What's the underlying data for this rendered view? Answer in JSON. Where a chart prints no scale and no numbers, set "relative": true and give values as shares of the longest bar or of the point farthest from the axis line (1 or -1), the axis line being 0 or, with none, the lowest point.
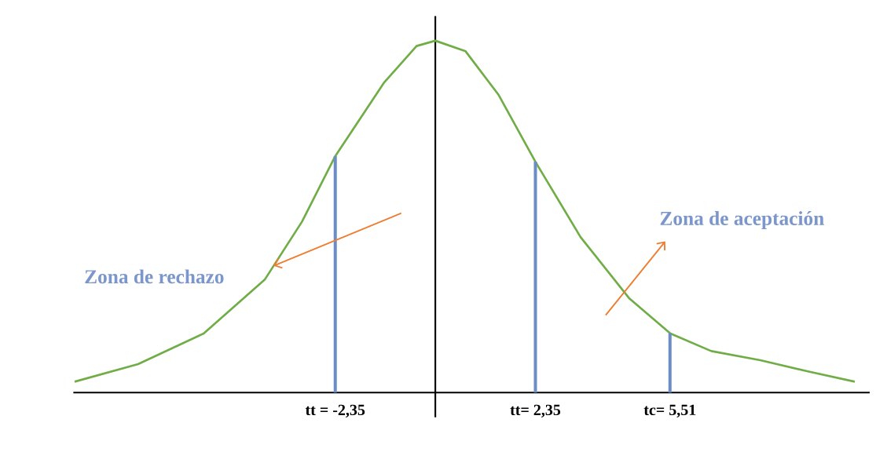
{
  "chart_data": {
    "type": "line",
    "relative": true,
    "marker": "none",
    "xlim": [
      -8.5,
      10.2
    ],
    "series": [
      {
        "color": "#70ad47",
        "x": [
          -8.47,
          -6.98,
          -5.44,
          -4.0,
          -3.13,
          -2.35,
          -1.21,
          -0.44,
          0,
          0.71,
          1.48,
          2.35,
          3.41,
          4.56,
          5.52,
          6.48,
          7.63,
          8.79,
          9.85
        ],
        "values": [
          0.031,
          0.081,
          0.168,
          0.322,
          0.486,
          0.672,
          0.88,
          0.985,
          1,
          0.97,
          0.847,
          0.656,
          0.442,
          0.267,
          0.168,
          0.118,
          0.092,
          0.059,
          0.031
        ]
      }
    ],
    "xticks": [
      {
        "value": -2.35,
        "label": "tt = -2,35"
      },
      {
        "value": 2.35,
        "label": "tt= 2,35"
      },
      {
        "value": 5.51,
        "label": "tc= 5,51"
      }
    ],
    "ref_lines": [
      {
        "axis": "x",
        "value": -2.35,
        "color": "#6a8cc7"
      },
      {
        "axis": "x",
        "value": 2.35,
        "color": "#6a8cc7"
      },
      {
        "axis": "x",
        "value": 5.51,
        "color": "#6a8cc7"
      }
    ],
    "annotations": [
      "Zona de aceptación",
      "Zona de rechazo"
    ]
  }
}
